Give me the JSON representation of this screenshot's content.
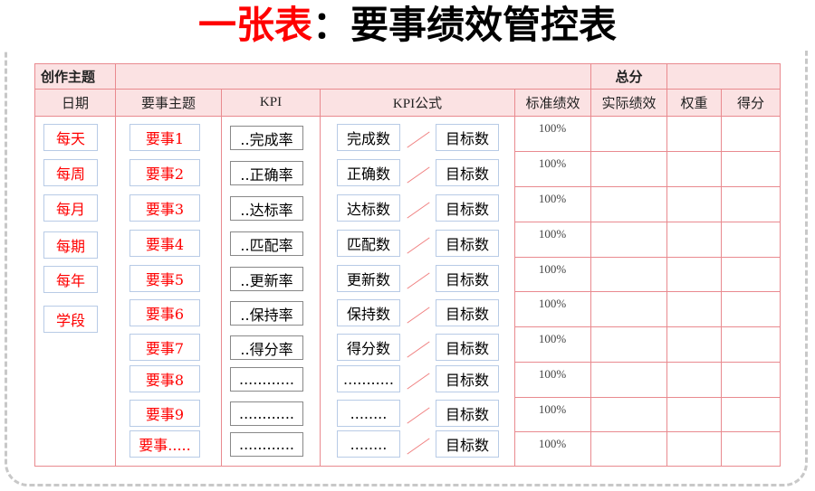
{
  "title": {
    "red": "一张表",
    "black": "：要事绩效管控表"
  },
  "header": {
    "topic_label": "创作主题",
    "total_label": "总分",
    "columns": [
      "日期",
      "要事主题",
      "KPI",
      "KPI公式",
      "标准绩效",
      "实际绩效",
      "权重",
      "得分"
    ]
  },
  "dates": [
    "每天",
    "每周",
    "每月",
    "每期",
    "每年",
    "学段"
  ],
  "items": [
    "要事1",
    "要事2",
    "要事3",
    "要事4",
    "要事5",
    "要事6",
    "要事7",
    "要事8",
    "要事9",
    "要事....."
  ],
  "kpis": [
    "..完成率",
    "..正确率",
    "..达标率",
    "..匹配率",
    "..更新率",
    "..保持率",
    "..得分率",
    "............",
    "............",
    "............"
  ],
  "numerators": [
    "完成数",
    "正确数",
    "达标数",
    "匹配数",
    "更新数",
    "保持数",
    "得分数",
    "...........",
    "........",
    "........"
  ],
  "denominator": "目标数",
  "standard": [
    "100%",
    "100%",
    "100%",
    "100%",
    "100%",
    "100%",
    "100%",
    "100%",
    "100%",
    "100%"
  ]
}
